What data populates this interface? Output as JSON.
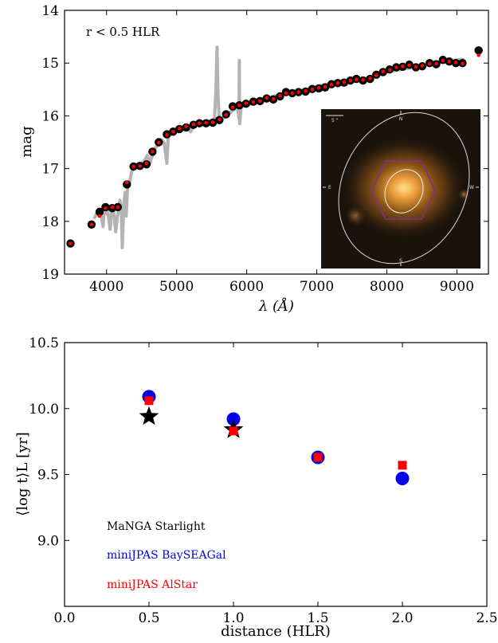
{
  "chart_data": [
    {
      "type": "scatter",
      "annotation": "r < 0.5 HLR",
      "xlabel": "λ (Å)",
      "ylabel": "mag",
      "xlim": [
        3400,
        9450
      ],
      "ylim": [
        19,
        14
      ],
      "y_inverted": true,
      "xticks": [
        "4000",
        "5000",
        "6000",
        "7000",
        "8000",
        "9000"
      ],
      "yticks": [
        "14",
        "15",
        "16",
        "17",
        "18",
        "19"
      ],
      "colors": {
        "spectrum": "#b3b3b3",
        "observed": "#000000",
        "model": "#ff0000"
      },
      "inset": {
        "type": "galaxy image",
        "labels": [
          "N",
          "E",
          "W",
          "S",
          "5 \""
        ]
      },
      "series": [
        {
          "type": "line",
          "values": [
            [
              3820,
              17.95
            ],
            [
              3860,
              17.85
            ],
            [
              3890,
              17.9
            ],
            [
              3910,
              17.8
            ],
            [
              3930,
              17.95
            ],
            [
              3950,
              18.1
            ],
            [
              3970,
              17.7
            ],
            [
              3990,
              17.85
            ],
            [
              4010,
              17.75
            ],
            [
              4030,
              17.95
            ],
            [
              4050,
              18.15
            ],
            [
              4070,
              17.85
            ],
            [
              4090,
              17.75
            ],
            [
              4110,
              17.9
            ],
            [
              4130,
              18.2
            ],
            [
              4150,
              17.95
            ],
            [
              4170,
              17.8
            ],
            [
              4190,
              17.6
            ],
            [
              4210,
              17.75
            ],
            [
              4225,
              18.5
            ],
            [
              4245,
              17.7
            ],
            [
              4265,
              17.45
            ],
            [
              4280,
              17.9
            ],
            [
              4300,
              17.35
            ],
            [
              4330,
              17.25
            ],
            [
              4360,
              17.05
            ],
            [
              4390,
              17.0
            ],
            [
              4420,
              16.95
            ],
            [
              4460,
              16.9
            ],
            [
              4500,
              16.9
            ],
            [
              4540,
              16.85
            ],
            [
              4580,
              16.75
            ],
            [
              4620,
              16.9
            ],
            [
              4660,
              16.7
            ],
            [
              4700,
              16.6
            ],
            [
              4740,
              16.55
            ],
            [
              4780,
              16.45
            ],
            [
              4820,
              16.5
            ],
            [
              4860,
              16.9
            ],
            [
              4880,
              16.4
            ],
            [
              4920,
              16.35
            ],
            [
              4960,
              16.3
            ],
            [
              5000,
              16.3
            ],
            [
              5050,
              16.28
            ],
            [
              5100,
              16.25
            ],
            [
              5150,
              16.22
            ],
            [
              5200,
              16.3
            ],
            [
              5250,
              16.18
            ],
            [
              5300,
              16.15
            ],
            [
              5350,
              16.12
            ],
            [
              5400,
              16.15
            ],
            [
              5450,
              16.1
            ],
            [
              5500,
              16.12
            ],
            [
              5540,
              16.05
            ],
            [
              5560,
              15.55
            ],
            [
              5577,
              14.7
            ],
            [
              5590,
              15.6
            ],
            [
              5610,
              16.1
            ],
            [
              5650,
              16.05
            ],
            [
              5700,
              16.02
            ],
            [
              5750,
              15.95
            ],
            [
              5800,
              15.9
            ],
            [
              5850,
              15.85
            ],
            [
              5870,
              15.85
            ],
            [
              5890,
              16.05
            ],
            [
              5895,
              14.95
            ],
            [
              5900,
              16.15
            ],
            [
              5920,
              15.85
            ],
            [
              5950,
              15.8
            ],
            [
              6000,
              15.8
            ],
            [
              6050,
              15.78
            ],
            [
              6100,
              15.75
            ],
            [
              6150,
              15.72
            ],
            [
              6200,
              15.7
            ],
            [
              6250,
              15.68
            ],
            [
              6300,
              15.66
            ],
            [
              6350,
              15.64
            ],
            [
              6400,
              15.62
            ],
            [
              6450,
              15.62
            ],
            [
              6500,
              15.6
            ],
            [
              6550,
              15.58
            ],
            [
              6600,
              15.58
            ],
            [
              6650,
              15.56
            ],
            [
              6700,
              15.55
            ],
            [
              6750,
              15.53
            ],
            [
              6800,
              15.52
            ],
            [
              6850,
              15.5
            ],
            [
              6900,
              15.48
            ],
            [
              6950,
              15.46
            ],
            [
              7000,
              15.45
            ],
            [
              7050,
              15.43
            ],
            [
              7100,
              15.41
            ],
            [
              7150,
              15.4
            ],
            [
              7200,
              15.4
            ],
            [
              7250,
              15.38
            ],
            [
              7300,
              15.37
            ],
            [
              7350,
              15.36
            ],
            [
              7400,
              15.35
            ],
            [
              7450,
              15.34
            ],
            [
              7500,
              15.33
            ],
            [
              7550,
              15.32
            ],
            [
              7600,
              15.34
            ],
            [
              7650,
              15.3
            ],
            [
              7700,
              15.29
            ],
            [
              7750,
              15.27
            ],
            [
              7800,
              15.25
            ],
            [
              7850,
              15.22
            ],
            [
              7900,
              15.2
            ],
            [
              7950,
              15.18
            ],
            [
              8000,
              15.16
            ],
            [
              8050,
              15.15
            ],
            [
              8100,
              15.14
            ],
            [
              8150,
              15.13
            ],
            [
              8200,
              15.12
            ],
            [
              8250,
              15.11
            ],
            [
              8300,
              15.1
            ],
            [
              8350,
              15.09
            ],
            [
              8400,
              15.08
            ],
            [
              8450,
              15.06
            ],
            [
              8500,
              15.05
            ],
            [
              8550,
              15.04
            ],
            [
              8600,
              15.02
            ],
            [
              8650,
              15.0
            ],
            [
              8700,
              14.99
            ],
            [
              8750,
              14.98
            ],
            [
              8800,
              14.98
            ],
            [
              8850,
              14.97
            ],
            [
              8900,
              14.96
            ],
            [
              8950,
              14.95
            ],
            [
              9000,
              14.94
            ],
            [
              9050,
              14.93
            ],
            [
              9100,
              14.93
            ]
          ]
        },
        {
          "type": "scatter",
          "values": [
            [
              3485,
              18.42
            ],
            [
              3785,
              18.06
            ],
            [
              3900,
              17.82
            ],
            [
              3985,
              17.73
            ],
            [
              4080,
              17.75
            ],
            [
              4160,
              17.73
            ],
            [
              4290,
              17.3
            ],
            [
              4385,
              16.96
            ],
            [
              4475,
              16.95
            ],
            [
              4570,
              16.92
            ],
            [
              4655,
              16.68
            ],
            [
              4745,
              16.5
            ],
            [
              4860,
              16.35
            ],
            [
              4950,
              16.3
            ],
            [
              5040,
              16.25
            ],
            [
              5135,
              16.22
            ],
            [
              5240,
              16.17
            ],
            [
              5325,
              16.14
            ],
            [
              5420,
              16.14
            ],
            [
              5515,
              16.13
            ],
            [
              5610,
              16.08
            ],
            [
              5705,
              15.97
            ],
            [
              5800,
              15.82
            ],
            [
              5895,
              15.8
            ],
            [
              5990,
              15.77
            ],
            [
              6095,
              15.73
            ],
            [
              6190,
              15.72
            ],
            [
              6285,
              15.67
            ],
            [
              6380,
              15.69
            ],
            [
              6475,
              15.63
            ],
            [
              6560,
              15.55
            ],
            [
              6650,
              15.57
            ],
            [
              6740,
              15.55
            ],
            [
              6840,
              15.54
            ],
            [
              6935,
              15.49
            ],
            [
              7030,
              15.48
            ],
            [
              7120,
              15.46
            ],
            [
              7210,
              15.4
            ],
            [
              7300,
              15.38
            ],
            [
              7390,
              15.37
            ],
            [
              7480,
              15.33
            ],
            [
              7565,
              15.3
            ],
            [
              7660,
              15.33
            ],
            [
              7760,
              15.3
            ],
            [
              7850,
              15.22
            ],
            [
              7945,
              15.17
            ],
            [
              8040,
              15.12
            ],
            [
              8135,
              15.08
            ],
            [
              8225,
              15.07
            ],
            [
              8320,
              15.03
            ],
            [
              8415,
              15.08
            ],
            [
              8505,
              15.06
            ],
            [
              8610,
              15.0
            ],
            [
              8705,
              15.02
            ],
            [
              8800,
              14.94
            ],
            [
              8890,
              14.97
            ],
            [
              8985,
              15.0
            ],
            [
              9080,
              15.0
            ],
            [
              9310,
              14.76
            ]
          ]
        },
        {
          "type": "scatter",
          "values": [
            [
              3485,
              18.42
            ],
            [
              3785,
              18.06
            ],
            [
              3900,
              17.9
            ],
            [
              3985,
              17.75
            ],
            [
              4080,
              17.73
            ],
            [
              4160,
              17.73
            ],
            [
              4290,
              17.26
            ],
            [
              4385,
              16.96
            ],
            [
              4475,
              16.95
            ],
            [
              4570,
              16.9
            ],
            [
              4655,
              16.68
            ],
            [
              4745,
              16.51
            ],
            [
              4860,
              16.36
            ],
            [
              4950,
              16.3
            ],
            [
              5040,
              16.24
            ],
            [
              5135,
              16.2
            ],
            [
              5240,
              16.16
            ],
            [
              5325,
              16.14
            ],
            [
              5420,
              16.13
            ],
            [
              5515,
              16.12
            ],
            [
              5610,
              16.07
            ],
            [
              5705,
              15.98
            ],
            [
              5800,
              15.84
            ],
            [
              5895,
              15.8
            ],
            [
              5990,
              15.76
            ],
            [
              6095,
              15.74
            ],
            [
              6190,
              15.72
            ],
            [
              6285,
              15.66
            ],
            [
              6380,
              15.68
            ],
            [
              6475,
              15.62
            ],
            [
              6560,
              15.57
            ],
            [
              6650,
              15.57
            ],
            [
              6740,
              15.55
            ],
            [
              6840,
              15.53
            ],
            [
              6935,
              15.5
            ],
            [
              7030,
              15.47
            ],
            [
              7120,
              15.45
            ],
            [
              7210,
              15.41
            ],
            [
              7300,
              15.38
            ],
            [
              7390,
              15.36
            ],
            [
              7480,
              15.33
            ],
            [
              7565,
              15.31
            ],
            [
              7660,
              15.32
            ],
            [
              7760,
              15.29
            ],
            [
              7850,
              15.23
            ],
            [
              7945,
              15.16
            ],
            [
              8040,
              15.13
            ],
            [
              8135,
              15.08
            ],
            [
              8225,
              15.06
            ],
            [
              8320,
              15.04
            ],
            [
              8415,
              15.07
            ],
            [
              8505,
              15.05
            ],
            [
              8610,
              15.01
            ],
            [
              8705,
              15.01
            ],
            [
              8800,
              14.95
            ],
            [
              8890,
              14.97
            ],
            [
              8985,
              14.99
            ],
            [
              9080,
              15.01
            ],
            [
              9310,
              14.85
            ]
          ]
        }
      ]
    },
    {
      "type": "scatter",
      "xlabel": "distance (HLR)",
      "ylabel": "⟨log t⟩L [yr]",
      "xlim": [
        0.0,
        2.5
      ],
      "ylim": [
        8.5,
        10.5
      ],
      "xticks": [
        "0.0",
        "0.5",
        "1.0",
        "1.5",
        "2.0",
        "2.5"
      ],
      "yticks": [
        "9.0",
        "9.5",
        "10.0",
        "10.5"
      ],
      "legend_placement": "lower-left",
      "series": [
        {
          "name": "MaNGA Starlight",
          "color": "#000000",
          "marker": "star",
          "x": [
            0.5,
            1.0
          ],
          "y": [
            9.94,
            9.84
          ]
        },
        {
          "name": "miniJPAS BaySEAGal",
          "color": "#0000ee",
          "marker": "circle",
          "x": [
            0.5,
            1.0,
            1.5,
            2.0
          ],
          "y": [
            10.09,
            9.92,
            9.63,
            9.47
          ]
        },
        {
          "name": "miniJPAS AlStar",
          "color": "#ff0000",
          "marker": "square",
          "x": [
            0.5,
            1.0,
            1.5,
            2.0
          ],
          "y": [
            10.06,
            9.83,
            9.63,
            9.57
          ]
        }
      ]
    }
  ]
}
